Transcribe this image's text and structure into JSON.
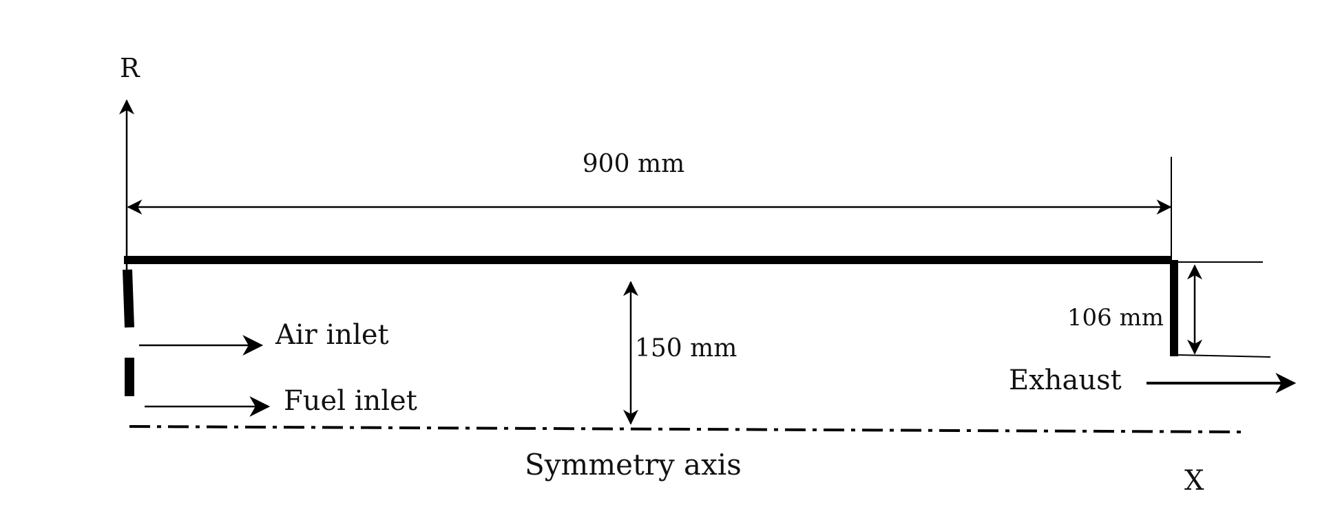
{
  "diagram": {
    "axis_r_label": "R",
    "axis_x_label": "X",
    "length_label": "900 mm",
    "radius_label": "150 mm",
    "outlet_label": "106 mm",
    "air_inlet_label": "Air inlet",
    "fuel_inlet_label": "Fuel inlet",
    "exhaust_label": "Exhaust",
    "symmetry_label": "Symmetry axis"
  },
  "colors": {
    "stroke": "#000000",
    "text": "#111111",
    "background": "#ffffff"
  }
}
